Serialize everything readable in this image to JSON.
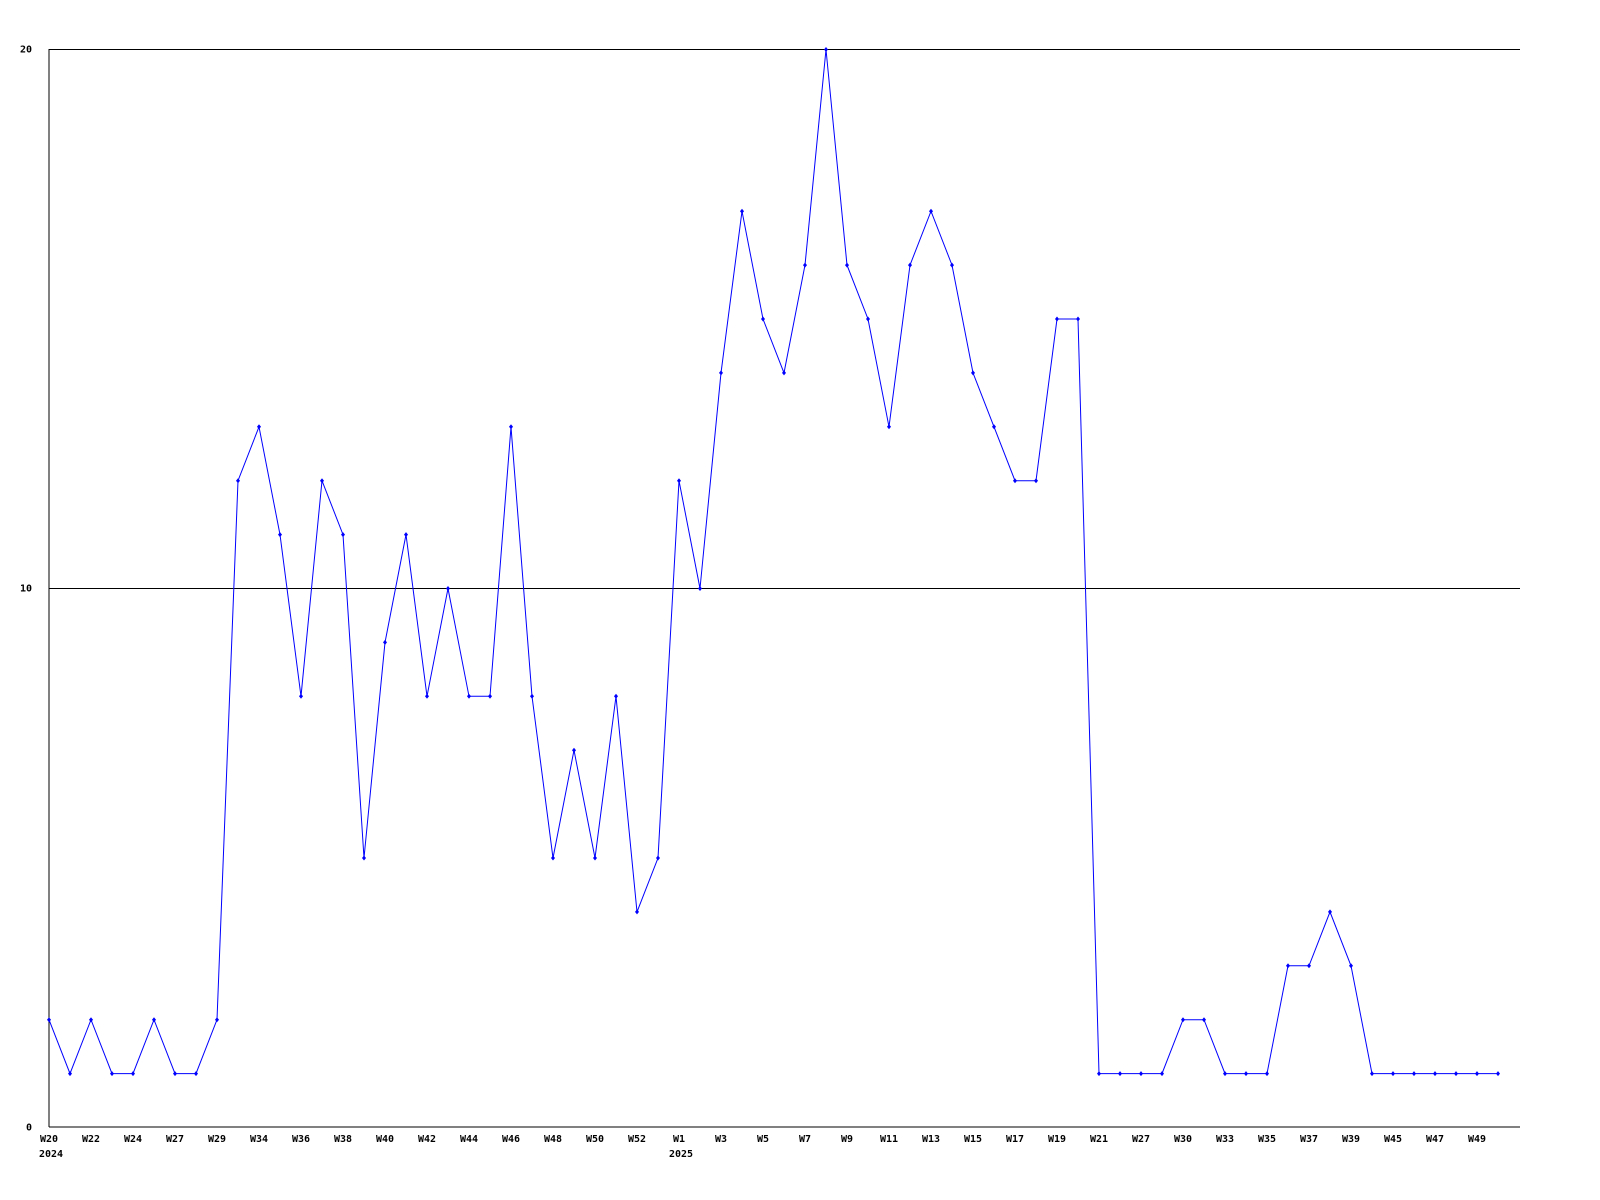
{
  "chart_data": {
    "type": "line",
    "title": "",
    "xlabel": "",
    "ylabel": "",
    "ylim": [
      0,
      20
    ],
    "y_ticks": [
      "0",
      "10",
      "20"
    ],
    "grid": "horizontal",
    "line_color": "#0000ff",
    "x_tick_labels": [
      "W20",
      "W22",
      "W24",
      "W27",
      "W29",
      "W34",
      "W36",
      "W38",
      "W40",
      "W42",
      "W44",
      "W46",
      "W48",
      "W50",
      "W52",
      "W1",
      "W3",
      "W5",
      "W7",
      "W9",
      "W11",
      "W13",
      "W15",
      "W17",
      "W19",
      "W21",
      "W27",
      "W30",
      "W33",
      "W35",
      "W37",
      "W39",
      "W45",
      "W47",
      "W49"
    ],
    "year_labels": [
      {
        "label": "2024",
        "at_tick": 0
      },
      {
        "label": "2025",
        "at_tick": 15
      }
    ],
    "series": [
      {
        "values": [
          2,
          1,
          2,
          1,
          1,
          2,
          1,
          1,
          2,
          12,
          13,
          11,
          8,
          12,
          11,
          5,
          9,
          11,
          8,
          10,
          8,
          8,
          13,
          8,
          5,
          7,
          5,
          8,
          4,
          5,
          12,
          10,
          14,
          17,
          15,
          14,
          16,
          20,
          16,
          15,
          13,
          16,
          17,
          16,
          14,
          13,
          12,
          12,
          15,
          15,
          1,
          1,
          1,
          1,
          2,
          2,
          1,
          1,
          1,
          3,
          3,
          4,
          3,
          1,
          1,
          1,
          1,
          1,
          1,
          1
        ]
      }
    ]
  }
}
